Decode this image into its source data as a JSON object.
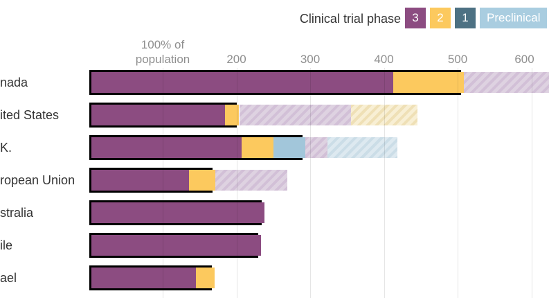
{
  "legend": {
    "title": "Clinical trial phase",
    "items": [
      {
        "label": "3",
        "color": "#8c4c81",
        "text_color": "#ffffff"
      },
      {
        "label": "2",
        "color": "#fcc95e",
        "text_color": "#ffffff"
      },
      {
        "label": "1",
        "color": "#4d7183",
        "text_color": "#ffffff"
      },
      {
        "label": "Preclinical",
        "color": "#a9cde0",
        "text_color": "#ffffff"
      }
    ]
  },
  "axis": {
    "unit": "% of population",
    "ticks": [
      {
        "value": 100,
        "lines": [
          "100% of",
          "population"
        ]
      },
      {
        "value": 200,
        "lines": [
          "200"
        ]
      },
      {
        "value": 300,
        "lines": [
          "300"
        ]
      },
      {
        "value": 400,
        "lines": [
          "400"
        ]
      },
      {
        "value": 500,
        "lines": [
          "500"
        ]
      },
      {
        "value": 600,
        "lines": [
          "600"
        ]
      }
    ]
  },
  "chart_data": {
    "type": "bar",
    "orientation": "horizontal",
    "stacked": true,
    "x_unit": "doses secured, as % of population",
    "xlim": [
      0,
      620
    ],
    "grid": true,
    "legend_position": "top-right",
    "segment_styles": [
      "solid_outlined",
      "hatched"
    ],
    "rows": [
      {
        "label": "nada",
        "confirmed": [
          {
            "phase": "3",
            "from": 0,
            "to": 410
          },
          {
            "phase": "2",
            "from": 410,
            "to": 505
          }
        ],
        "potential": [
          {
            "phase": "3",
            "from": 505,
            "to": 620
          }
        ]
      },
      {
        "label": "ited States",
        "confirmed": [
          {
            "phase": "3",
            "from": 0,
            "to": 182
          },
          {
            "phase": "2",
            "from": 182,
            "to": 200
          }
        ],
        "potential": [
          {
            "phase": "3",
            "from": 200,
            "to": 352
          },
          {
            "phase": "2",
            "from": 352,
            "to": 442
          }
        ]
      },
      {
        "label": "K.",
        "confirmed": [
          {
            "phase": "3",
            "from": 0,
            "to": 204
          },
          {
            "phase": "2",
            "from": 204,
            "to": 247
          },
          {
            "phase": "Preclinical",
            "from": 247,
            "to": 290
          }
        ],
        "potential": [
          {
            "phase": "3",
            "from": 290,
            "to": 320
          },
          {
            "phase": "Preclinical",
            "from": 320,
            "to": 415
          }
        ]
      },
      {
        "label": "ropean Union",
        "confirmed": [
          {
            "phase": "3",
            "from": 0,
            "to": 133
          },
          {
            "phase": "2",
            "from": 133,
            "to": 168
          }
        ],
        "potential": [
          {
            "phase": "3",
            "from": 168,
            "to": 265
          }
        ]
      },
      {
        "label": "stralia",
        "confirmed": [
          {
            "phase": "3",
            "from": 0,
            "to": 234
          }
        ],
        "potential": []
      },
      {
        "label": "ile",
        "confirmed": [
          {
            "phase": "3",
            "from": 0,
            "to": 230
          }
        ],
        "potential": []
      },
      {
        "label": "ael",
        "confirmed": [
          {
            "phase": "3",
            "from": 0,
            "to": 142
          },
          {
            "phase": "2",
            "from": 142,
            "to": 167
          }
        ],
        "potential": []
      }
    ]
  },
  "colors": {
    "phase3": "#8c4c81",
    "phase2": "#fcc95e",
    "phase1": "#4d7183",
    "preclinical": "#a2c6da",
    "hatch3_base": "#ded2e1",
    "hatch3_stripe": "#d2c0d7",
    "hatch2_base": "#f8efd4",
    "hatch2_stripe": "#efe0b6",
    "hatchPre_base": "#dde9f0",
    "hatchPre_stripe": "#cbdde7",
    "outline": "#000000",
    "text": "#333333",
    "tick_text": "#8f8f8f"
  }
}
